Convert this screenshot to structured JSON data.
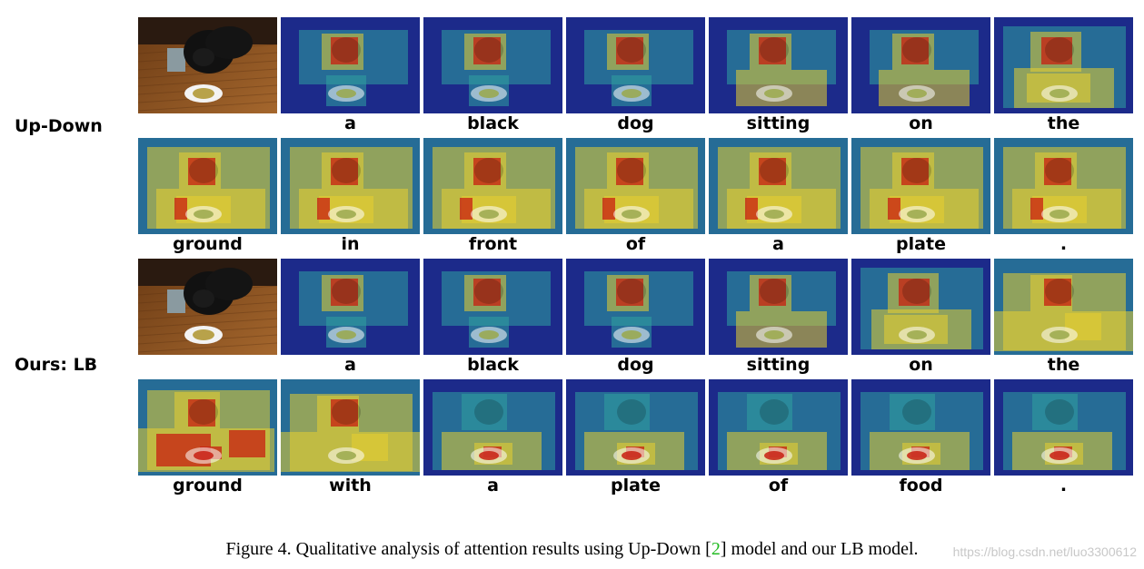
{
  "rows": [
    {
      "label": "Up-Down",
      "words": [
        "",
        "a",
        "black",
        "dog",
        "sitting",
        "on",
        "the"
      ],
      "first_is_photo": true,
      "attention": [
        0,
        1,
        1,
        1,
        2,
        2,
        3
      ]
    },
    {
      "label": "",
      "words": [
        "ground",
        "in",
        "front",
        "of",
        "a",
        "plate",
        "."
      ],
      "first_is_photo": false,
      "attention": [
        4,
        4,
        4,
        4,
        4,
        4,
        4
      ]
    },
    {
      "label": "Ours: LB",
      "words": [
        "",
        "a",
        "black",
        "dog",
        "sitting",
        "on",
        "the"
      ],
      "first_is_photo": true,
      "attention": [
        0,
        1,
        1,
        1,
        2,
        3,
        5
      ]
    },
    {
      "label": "",
      "words": [
        "ground",
        "with",
        "a",
        "plate",
        "of",
        "food",
        "."
      ],
      "first_is_photo": false,
      "attention": [
        6,
        5,
        7,
        7,
        7,
        7,
        7
      ]
    }
  ],
  "caption": {
    "prefix": "Figure 4. Qualitative analysis of attention results using Up-Down [",
    "ref": "2",
    "suffix": "] model and our LB model."
  },
  "watermark": "https://blog.csdn.net/luo3300612",
  "colors": {
    "low": "#1c2a8a",
    "mid": "#2fa3a0",
    "high": "#e8d030",
    "peak": "#c81e10",
    "ref_link": "#22bb22"
  }
}
